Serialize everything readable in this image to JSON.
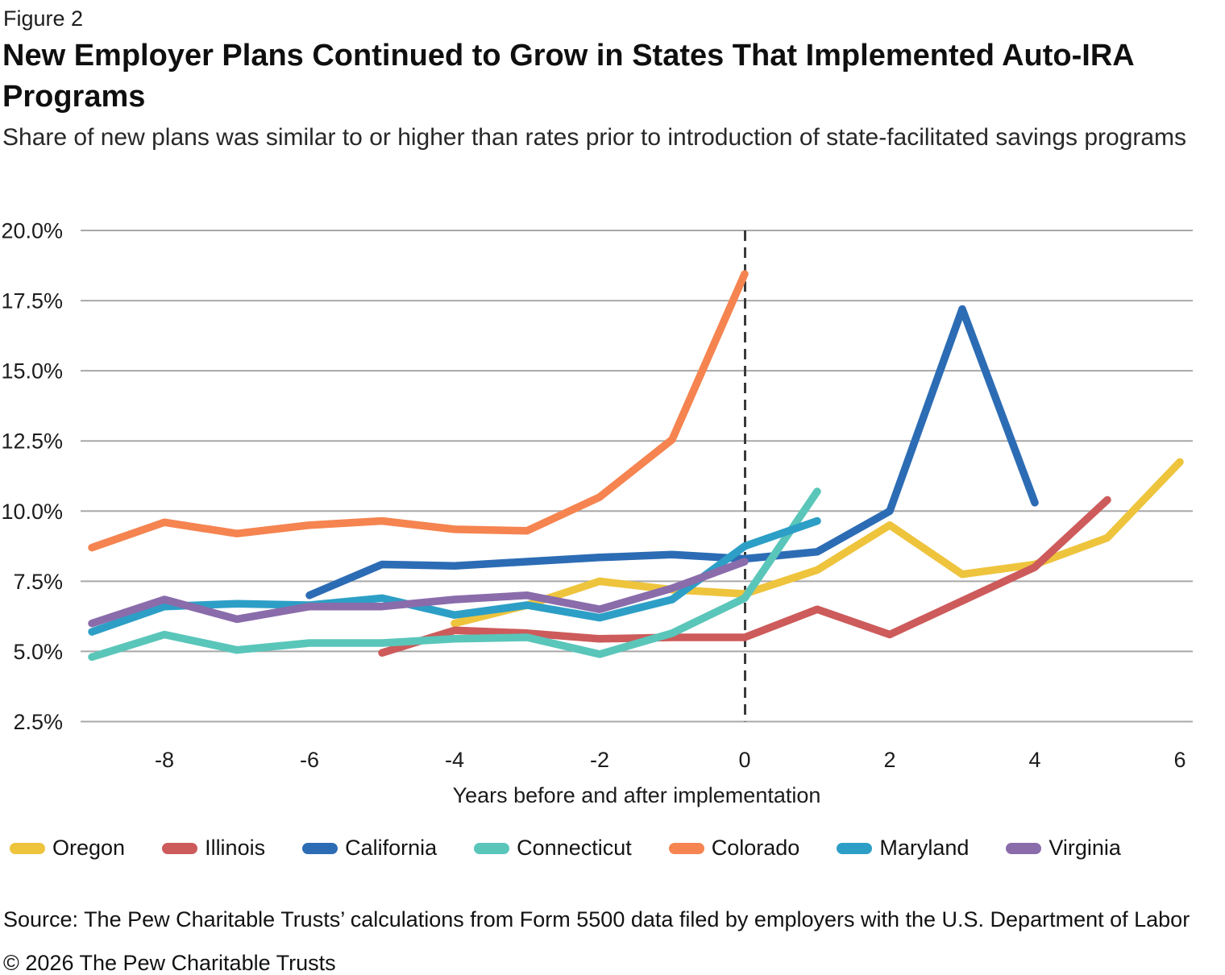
{
  "figure_label": "Figure 2",
  "title": "New Employer Plans Continued to Grow in States That Implemented Auto-IRA Programs",
  "subtitle": "Share of new plans was similar to or higher than rates prior to introduction of state-facilitated savings programs",
  "chart_data": {
    "type": "line",
    "title": "New Employer Plans Continued to Grow in States That Implemented Auto-IRA Programs",
    "xlabel": "Years before and after implementation",
    "ylabel": "",
    "unit": "%",
    "xlim": [
      -9.2,
      6.2
    ],
    "ylim": [
      2.5,
      20.0
    ],
    "x_ticks": [
      -8,
      -6,
      -4,
      -2,
      0,
      2,
      4,
      6
    ],
    "y_ticks_percent": [
      20.0,
      17.5,
      15.0,
      12.5,
      10.0,
      7.5,
      5.0,
      2.5
    ],
    "grid": "horizontal",
    "legend_position": "bottom",
    "reference_line": {
      "x": 0,
      "style": "dashed",
      "color": "#3a3a3a"
    },
    "colors": {
      "gridline": "#a8a8a8",
      "axis_text": "#1c1c1c",
      "dashed_line": "#3a3a3a"
    },
    "series": [
      {
        "name": "Oregon",
        "color": "#eec43d",
        "x": [
          -4,
          -3,
          -2,
          -1,
          0,
          1,
          2,
          3,
          4,
          5,
          6
        ],
        "values": [
          6.0,
          6.65,
          7.5,
          7.2,
          7.05,
          7.9,
          9.5,
          7.75,
          8.1,
          9.05,
          11.75
        ]
      },
      {
        "name": "Illinois",
        "color": "#cd5b5b",
        "x": [
          -5,
          -4,
          -3,
          -2,
          -1,
          0,
          1,
          2,
          3,
          4,
          5
        ],
        "values": [
          4.95,
          5.75,
          5.65,
          5.45,
          5.5,
          5.5,
          6.5,
          5.6,
          6.8,
          8.0,
          10.4
        ]
      },
      {
        "name": "California",
        "color": "#2c6cb4",
        "x": [
          -6,
          -5,
          -4,
          -3,
          -2,
          -1,
          0,
          1,
          2,
          3,
          4
        ],
        "values": [
          7.0,
          8.1,
          8.05,
          8.2,
          8.35,
          8.45,
          8.3,
          8.55,
          10.0,
          17.2,
          10.3
        ]
      },
      {
        "name": "Connecticut",
        "color": "#5ac6ba",
        "x": [
          -9,
          -8,
          -7,
          -6,
          -5,
          -4,
          -3,
          -2,
          -1,
          0,
          1
        ],
        "values": [
          4.8,
          5.6,
          5.05,
          5.3,
          5.3,
          5.45,
          5.5,
          4.9,
          5.65,
          6.9,
          10.7
        ]
      },
      {
        "name": "Colorado",
        "color": "#f58450",
        "x": [
          -9,
          -8,
          -7,
          -6,
          -5,
          -4,
          -3,
          -2,
          -1,
          0
        ],
        "values": [
          8.7,
          9.6,
          9.2,
          9.5,
          9.65,
          9.35,
          9.3,
          10.5,
          12.55,
          18.45
        ]
      },
      {
        "name": "Maryland",
        "color": "#2d9fc6",
        "x": [
          -9,
          -8,
          -7,
          -6,
          -5,
          -4,
          -3,
          -2,
          -1,
          0,
          1
        ],
        "values": [
          5.7,
          6.6,
          6.7,
          6.65,
          6.9,
          6.3,
          6.65,
          6.2,
          6.85,
          8.75,
          9.65
        ]
      },
      {
        "name": "Virginia",
        "color": "#8a6cab",
        "x": [
          -9,
          -8,
          -7,
          -6,
          -5,
          -4,
          -3,
          -2,
          -1,
          0
        ],
        "values": [
          6.0,
          6.85,
          6.15,
          6.6,
          6.6,
          6.85,
          7.0,
          6.5,
          7.25,
          8.2
        ]
      }
    ]
  },
  "source": "Source: The Pew Charitable Trusts’ calculations from Form 5500 data filed by employers with the U.S. Department of Labor",
  "copyright": "© 2026 The Pew Charitable Trusts"
}
